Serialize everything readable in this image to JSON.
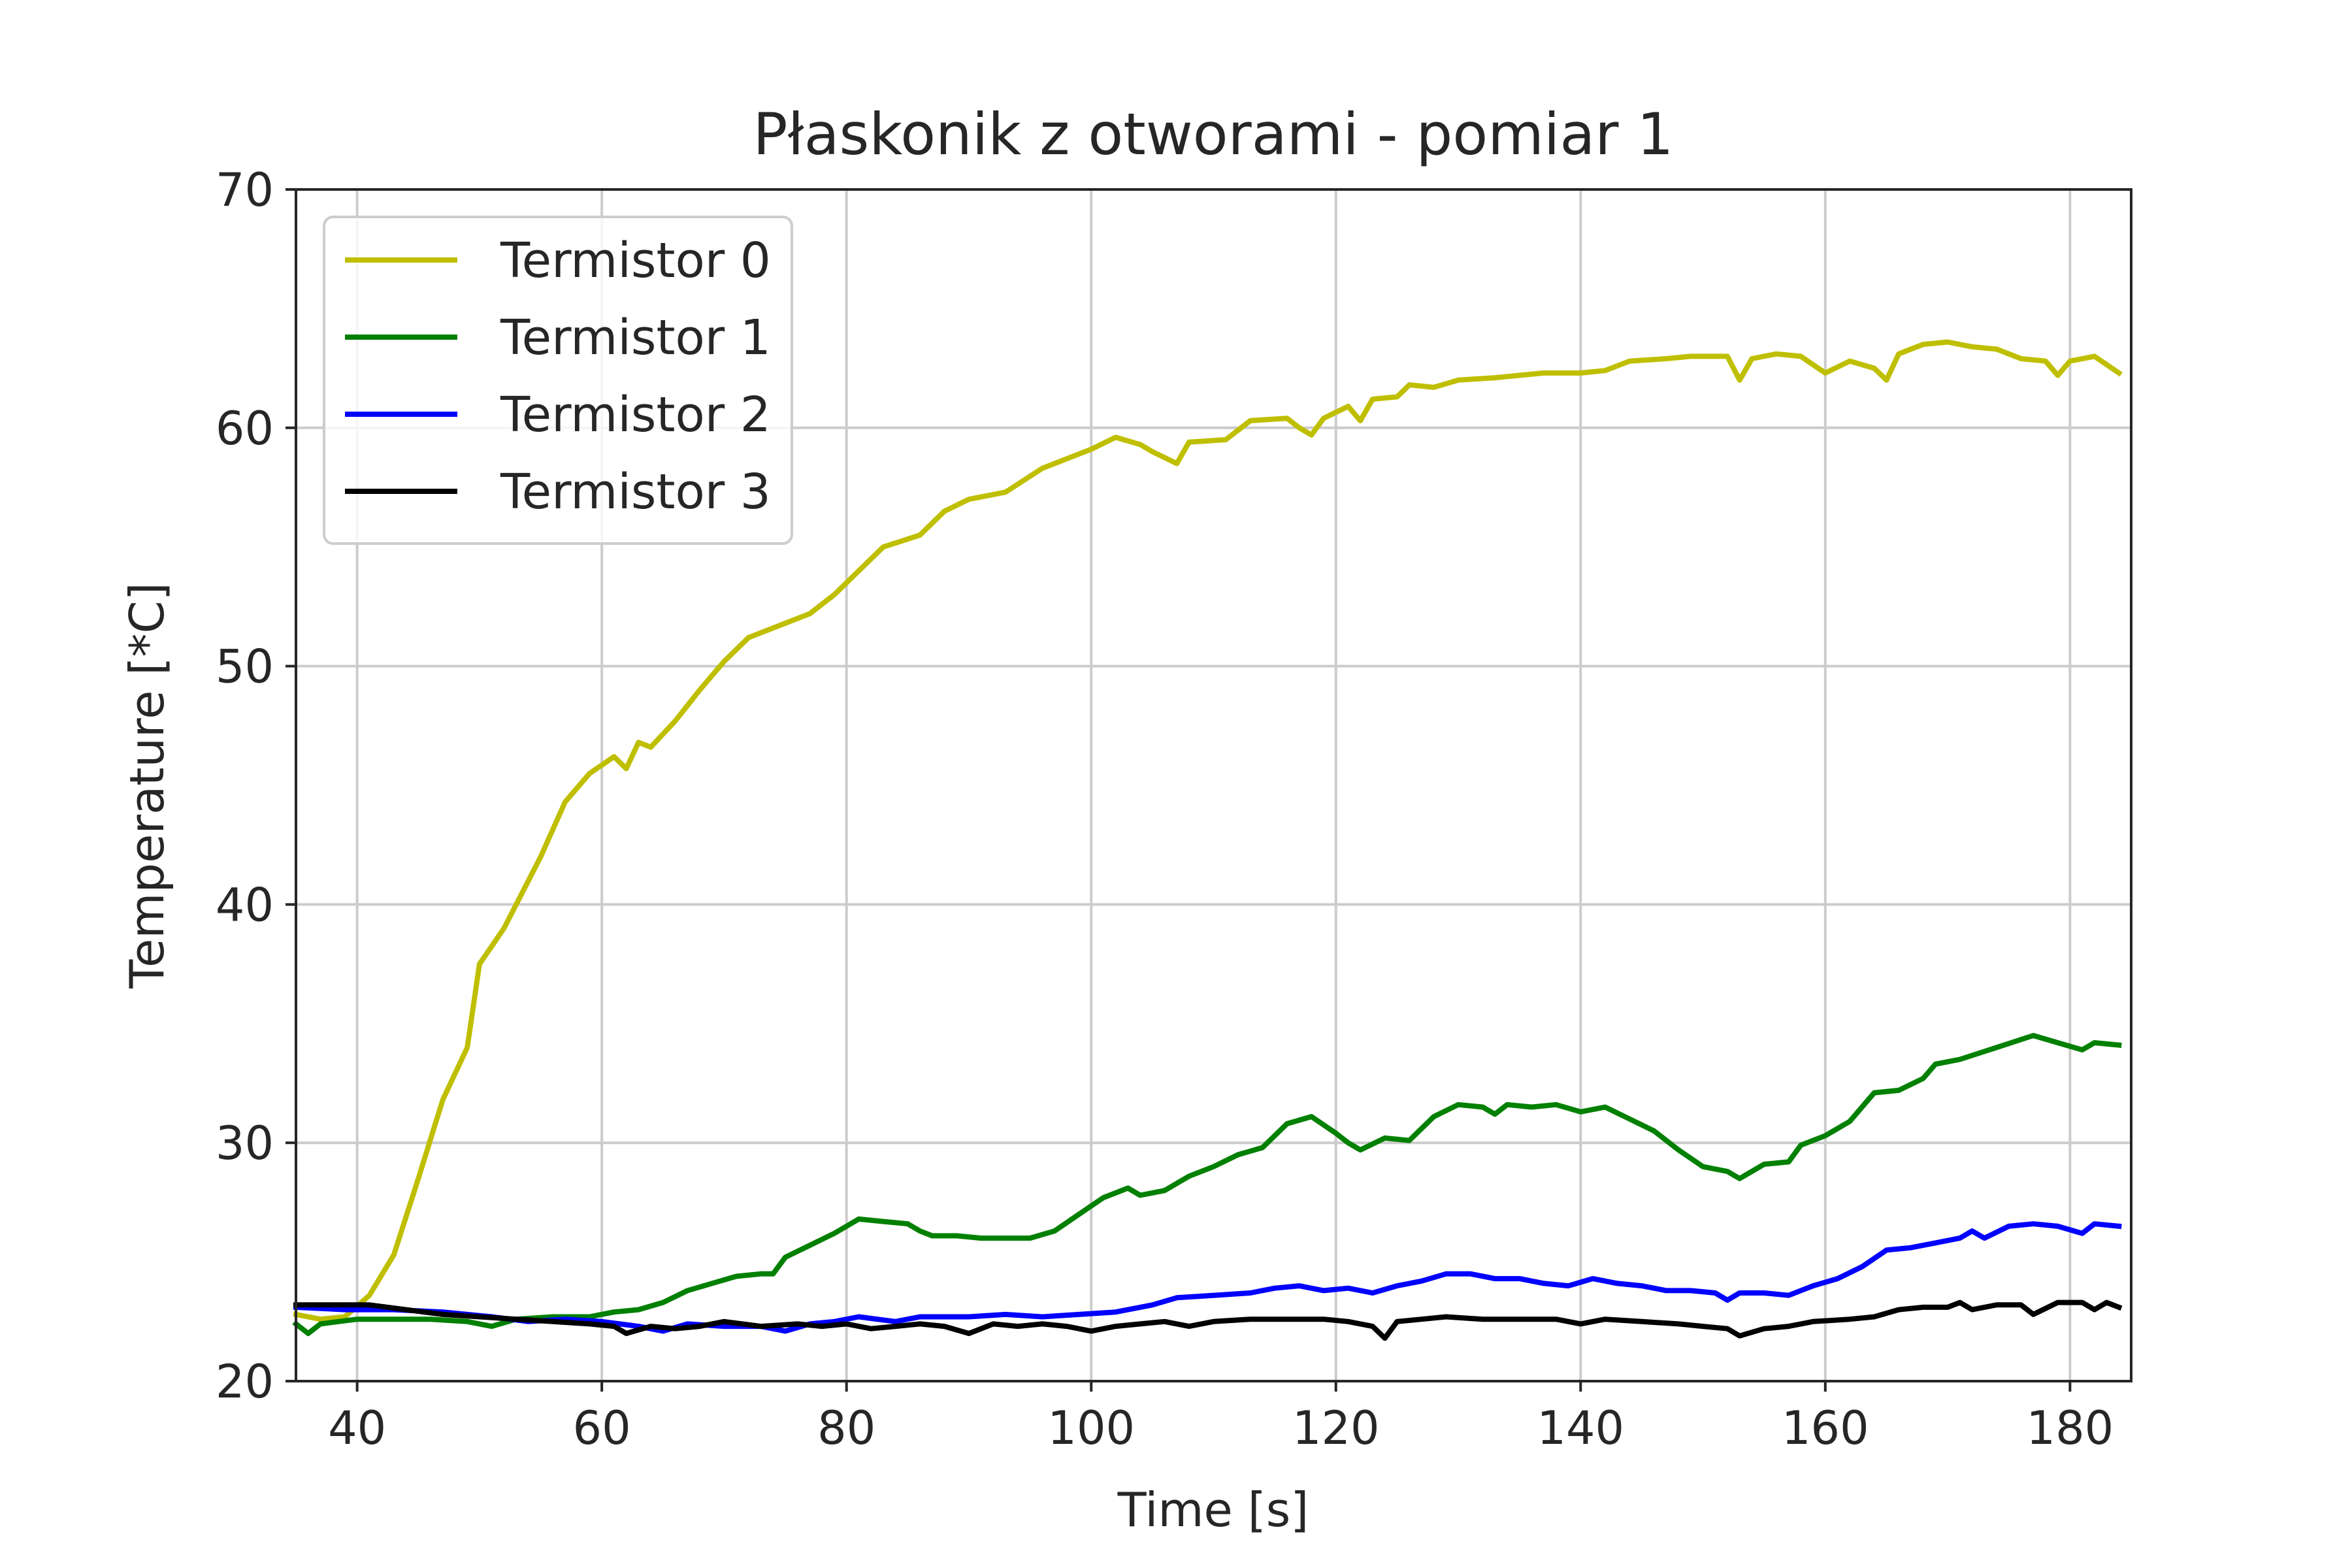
{
  "chart_data": {
    "type": "line",
    "title": "Płaskonik z otworami - pomiar 1",
    "xlabel": "Time [s]",
    "ylabel": "Temperature [*C]",
    "xlim": [
      35,
      185
    ],
    "ylim": [
      20,
      70
    ],
    "xticks": [
      40,
      60,
      80,
      100,
      120,
      140,
      160,
      180
    ],
    "yticks": [
      20,
      30,
      40,
      50,
      60,
      70
    ],
    "grid": true,
    "legend_position": "top-left",
    "series": [
      {
        "name": "Termistor 0",
        "color": "#bfbf00",
        "points": [
          [
            35,
            22.8
          ],
          [
            37,
            22.6
          ],
          [
            39,
            22.7
          ],
          [
            41,
            23.6
          ],
          [
            43,
            25.3
          ],
          [
            45,
            28.5
          ],
          [
            47,
            31.8
          ],
          [
            49,
            34.0
          ],
          [
            50,
            37.5
          ],
          [
            52,
            39.0
          ],
          [
            55,
            42.0
          ],
          [
            57,
            44.3
          ],
          [
            59,
            45.5
          ],
          [
            61,
            46.2
          ],
          [
            62,
            45.7
          ],
          [
            63,
            46.8
          ],
          [
            64,
            46.6
          ],
          [
            66,
            47.7
          ],
          [
            68,
            49.0
          ],
          [
            70,
            50.2
          ],
          [
            72,
            51.2
          ],
          [
            75,
            51.8
          ],
          [
            77,
            52.2
          ],
          [
            79,
            53.0
          ],
          [
            81,
            54.0
          ],
          [
            83,
            55.0
          ],
          [
            86,
            55.5
          ],
          [
            88,
            56.5
          ],
          [
            90,
            57.0
          ],
          [
            93,
            57.3
          ],
          [
            96,
            58.3
          ],
          [
            100,
            59.1
          ],
          [
            102,
            59.6
          ],
          [
            104,
            59.3
          ],
          [
            105,
            59.0
          ],
          [
            107,
            58.5
          ],
          [
            108,
            59.4
          ],
          [
            111,
            59.5
          ],
          [
            113,
            60.3
          ],
          [
            116,
            60.4
          ],
          [
            117,
            60.0
          ],
          [
            118,
            59.7
          ],
          [
            119,
            60.4
          ],
          [
            121,
            60.9
          ],
          [
            122,
            60.3
          ],
          [
            123,
            61.2
          ],
          [
            125,
            61.3
          ],
          [
            126,
            61.8
          ],
          [
            128,
            61.7
          ],
          [
            130,
            62.0
          ],
          [
            133,
            62.1
          ],
          [
            135,
            62.2
          ],
          [
            137,
            62.3
          ],
          [
            140,
            62.3
          ],
          [
            142,
            62.4
          ],
          [
            144,
            62.8
          ],
          [
            147,
            62.9
          ],
          [
            149,
            63.0
          ],
          [
            152,
            63.0
          ],
          [
            153,
            62.0
          ],
          [
            154,
            62.9
          ],
          [
            156,
            63.1
          ],
          [
            158,
            63.0
          ],
          [
            160,
            62.3
          ],
          [
            162,
            62.8
          ],
          [
            164,
            62.5
          ],
          [
            165,
            62.0
          ],
          [
            166,
            63.1
          ],
          [
            168,
            63.5
          ],
          [
            170,
            63.6
          ],
          [
            172,
            63.4
          ],
          [
            174,
            63.3
          ],
          [
            176,
            62.9
          ],
          [
            178,
            62.8
          ],
          [
            179,
            62.2
          ],
          [
            180,
            62.8
          ],
          [
            182,
            63.0
          ],
          [
            184,
            62.3
          ]
        ]
      },
      {
        "name": "Termistor 1",
        "color": "#008000",
        "points": [
          [
            35,
            22.4
          ],
          [
            36,
            22.0
          ],
          [
            37,
            22.4
          ],
          [
            40,
            22.6
          ],
          [
            43,
            22.6
          ],
          [
            46,
            22.6
          ],
          [
            49,
            22.5
          ],
          [
            51,
            22.3
          ],
          [
            53,
            22.6
          ],
          [
            56,
            22.7
          ],
          [
            59,
            22.7
          ],
          [
            61,
            22.9
          ],
          [
            63,
            23.0
          ],
          [
            65,
            23.3
          ],
          [
            67,
            23.8
          ],
          [
            69,
            24.1
          ],
          [
            71,
            24.4
          ],
          [
            73,
            24.5
          ],
          [
            74,
            24.5
          ],
          [
            75,
            25.2
          ],
          [
            77,
            25.7
          ],
          [
            79,
            26.2
          ],
          [
            81,
            26.8
          ],
          [
            83,
            26.7
          ],
          [
            85,
            26.6
          ],
          [
            86,
            26.3
          ],
          [
            87,
            26.1
          ],
          [
            89,
            26.1
          ],
          [
            91,
            26.0
          ],
          [
            95,
            26.0
          ],
          [
            97,
            26.3
          ],
          [
            99,
            27.0
          ],
          [
            101,
            27.7
          ],
          [
            103,
            28.1
          ],
          [
            104,
            27.8
          ],
          [
            106,
            28.0
          ],
          [
            108,
            28.6
          ],
          [
            110,
            29.0
          ],
          [
            112,
            29.5
          ],
          [
            114,
            29.8
          ],
          [
            116,
            30.8
          ],
          [
            118,
            31.1
          ],
          [
            120,
            30.4
          ],
          [
            121,
            30.0
          ],
          [
            122,
            29.7
          ],
          [
            124,
            30.2
          ],
          [
            126,
            30.1
          ],
          [
            128,
            31.1
          ],
          [
            130,
            31.6
          ],
          [
            132,
            31.5
          ],
          [
            133,
            31.2
          ],
          [
            134,
            31.6
          ],
          [
            136,
            31.5
          ],
          [
            138,
            31.6
          ],
          [
            140,
            31.3
          ],
          [
            142,
            31.5
          ],
          [
            144,
            31.0
          ],
          [
            146,
            30.5
          ],
          [
            148,
            29.7
          ],
          [
            150,
            29.0
          ],
          [
            152,
            28.8
          ],
          [
            153,
            28.5
          ],
          [
            155,
            29.1
          ],
          [
            157,
            29.2
          ],
          [
            158,
            29.9
          ],
          [
            160,
            30.3
          ],
          [
            162,
            30.9
          ],
          [
            164,
            32.1
          ],
          [
            166,
            32.2
          ],
          [
            168,
            32.7
          ],
          [
            169,
            33.3
          ],
          [
            171,
            33.5
          ],
          [
            174,
            34.0
          ],
          [
            177,
            34.5
          ],
          [
            179,
            34.2
          ],
          [
            181,
            33.9
          ],
          [
            182,
            34.2
          ],
          [
            184,
            34.1
          ]
        ]
      },
      {
        "name": "Termistor 2",
        "color": "#0000ff",
        "points": [
          [
            35,
            23.1
          ],
          [
            39,
            23.0
          ],
          [
            43,
            23.0
          ],
          [
            47,
            22.9
          ],
          [
            51,
            22.7
          ],
          [
            54,
            22.5
          ],
          [
            57,
            22.6
          ],
          [
            60,
            22.5
          ],
          [
            63,
            22.3
          ],
          [
            65,
            22.1
          ],
          [
            67,
            22.4
          ],
          [
            70,
            22.3
          ],
          [
            73,
            22.3
          ],
          [
            75,
            22.1
          ],
          [
            77,
            22.4
          ],
          [
            79,
            22.5
          ],
          [
            81,
            22.7
          ],
          [
            84,
            22.5
          ],
          [
            86,
            22.7
          ],
          [
            90,
            22.7
          ],
          [
            93,
            22.8
          ],
          [
            96,
            22.7
          ],
          [
            99,
            22.8
          ],
          [
            102,
            22.9
          ],
          [
            105,
            23.2
          ],
          [
            107,
            23.5
          ],
          [
            110,
            23.6
          ],
          [
            113,
            23.7
          ],
          [
            115,
            23.9
          ],
          [
            117,
            24.0
          ],
          [
            119,
            23.8
          ],
          [
            121,
            23.9
          ],
          [
            123,
            23.7
          ],
          [
            125,
            24.0
          ],
          [
            127,
            24.2
          ],
          [
            129,
            24.5
          ],
          [
            131,
            24.5
          ],
          [
            133,
            24.3
          ],
          [
            135,
            24.3
          ],
          [
            137,
            24.1
          ],
          [
            139,
            24.0
          ],
          [
            141,
            24.3
          ],
          [
            143,
            24.1
          ],
          [
            145,
            24.0
          ],
          [
            147,
            23.8
          ],
          [
            149,
            23.8
          ],
          [
            151,
            23.7
          ],
          [
            152,
            23.4
          ],
          [
            153,
            23.7
          ],
          [
            155,
            23.7
          ],
          [
            157,
            23.6
          ],
          [
            159,
            24.0
          ],
          [
            161,
            24.3
          ],
          [
            163,
            24.8
          ],
          [
            165,
            25.5
          ],
          [
            167,
            25.6
          ],
          [
            169,
            25.8
          ],
          [
            171,
            26.0
          ],
          [
            172,
            26.3
          ],
          [
            173,
            26.0
          ],
          [
            175,
            26.5
          ],
          [
            177,
            26.6
          ],
          [
            179,
            26.5
          ],
          [
            181,
            26.2
          ],
          [
            182,
            26.6
          ],
          [
            184,
            26.5
          ]
        ]
      },
      {
        "name": "Termistor 3",
        "color": "#000000",
        "points": [
          [
            35,
            23.2
          ],
          [
            38,
            23.2
          ],
          [
            41,
            23.2
          ],
          [
            44,
            23.0
          ],
          [
            47,
            22.8
          ],
          [
            50,
            22.7
          ],
          [
            53,
            22.6
          ],
          [
            56,
            22.5
          ],
          [
            59,
            22.4
          ],
          [
            61,
            22.3
          ],
          [
            62,
            22.0
          ],
          [
            64,
            22.3
          ],
          [
            66,
            22.2
          ],
          [
            68,
            22.3
          ],
          [
            70,
            22.5
          ],
          [
            73,
            22.3
          ],
          [
            76,
            22.4
          ],
          [
            78,
            22.3
          ],
          [
            80,
            22.4
          ],
          [
            82,
            22.2
          ],
          [
            84,
            22.3
          ],
          [
            86,
            22.4
          ],
          [
            88,
            22.3
          ],
          [
            90,
            22.0
          ],
          [
            92,
            22.4
          ],
          [
            94,
            22.3
          ],
          [
            96,
            22.4
          ],
          [
            98,
            22.3
          ],
          [
            100,
            22.1
          ],
          [
            102,
            22.3
          ],
          [
            104,
            22.4
          ],
          [
            106,
            22.5
          ],
          [
            108,
            22.3
          ],
          [
            110,
            22.5
          ],
          [
            113,
            22.6
          ],
          [
            116,
            22.6
          ],
          [
            119,
            22.6
          ],
          [
            121,
            22.5
          ],
          [
            123,
            22.3
          ],
          [
            124,
            21.8
          ],
          [
            125,
            22.5
          ],
          [
            127,
            22.6
          ],
          [
            129,
            22.7
          ],
          [
            132,
            22.6
          ],
          [
            135,
            22.6
          ],
          [
            138,
            22.6
          ],
          [
            140,
            22.4
          ],
          [
            142,
            22.6
          ],
          [
            145,
            22.5
          ],
          [
            148,
            22.4
          ],
          [
            150,
            22.3
          ],
          [
            152,
            22.2
          ],
          [
            153,
            21.9
          ],
          [
            155,
            22.2
          ],
          [
            157,
            22.3
          ],
          [
            159,
            22.5
          ],
          [
            162,
            22.6
          ],
          [
            164,
            22.7
          ],
          [
            166,
            23.0
          ],
          [
            168,
            23.1
          ],
          [
            170,
            23.1
          ],
          [
            171,
            23.3
          ],
          [
            172,
            23.0
          ],
          [
            174,
            23.2
          ],
          [
            176,
            23.2
          ],
          [
            177,
            22.8
          ],
          [
            179,
            23.3
          ],
          [
            181,
            23.3
          ],
          [
            182,
            23.0
          ],
          [
            183,
            23.3
          ],
          [
            184,
            23.1
          ]
        ]
      }
    ]
  }
}
